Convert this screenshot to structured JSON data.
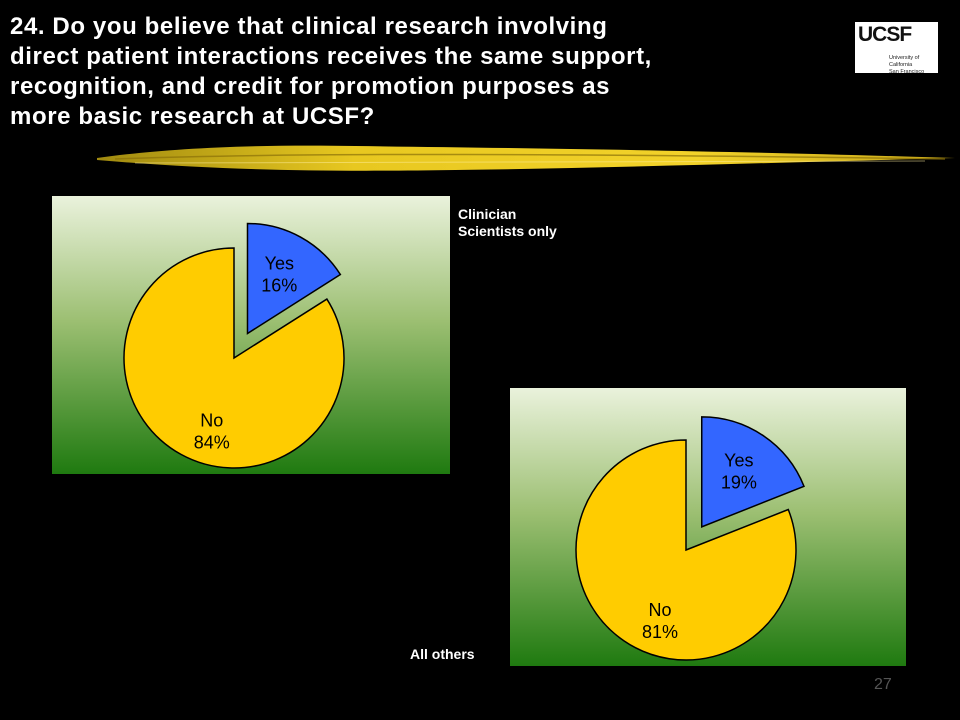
{
  "slide": {
    "title_lines": [
      "24. Do you believe that clinical research involving",
      "direct patient interactions receives the same support,",
      "recognition, and credit for promotion purposes as",
      "more basic research at UCSF?"
    ],
    "logo": {
      "letters": "UCSF",
      "sub_lines": [
        "University of California",
        "San Francisco"
      ]
    },
    "page_number": "27"
  },
  "chart_data": [
    {
      "type": "pie",
      "title": "",
      "group_label_lines": [
        "Clinician",
        "Scientists only"
      ],
      "categories": [
        "Yes",
        "No"
      ],
      "values": [
        16,
        84
      ],
      "labels": [
        {
          "name": "Yes",
          "pct": "16%"
        },
        {
          "name": "No",
          "pct": "84%"
        }
      ],
      "colors": {
        "Yes": "#3366FF",
        "No": "#FFCC00"
      },
      "exploded": "Yes",
      "background": "gradient light-green to dark-green"
    },
    {
      "type": "pie",
      "title": "",
      "group_label_lines": [
        "All others"
      ],
      "categories": [
        "Yes",
        "No"
      ],
      "values": [
        19,
        81
      ],
      "labels": [
        {
          "name": "Yes",
          "pct": "19%"
        },
        {
          "name": "No",
          "pct": "81%"
        }
      ],
      "colors": {
        "Yes": "#3366FF",
        "No": "#FFCC00"
      },
      "exploded": "Yes",
      "background": "gradient light-green to dark-green"
    }
  ]
}
